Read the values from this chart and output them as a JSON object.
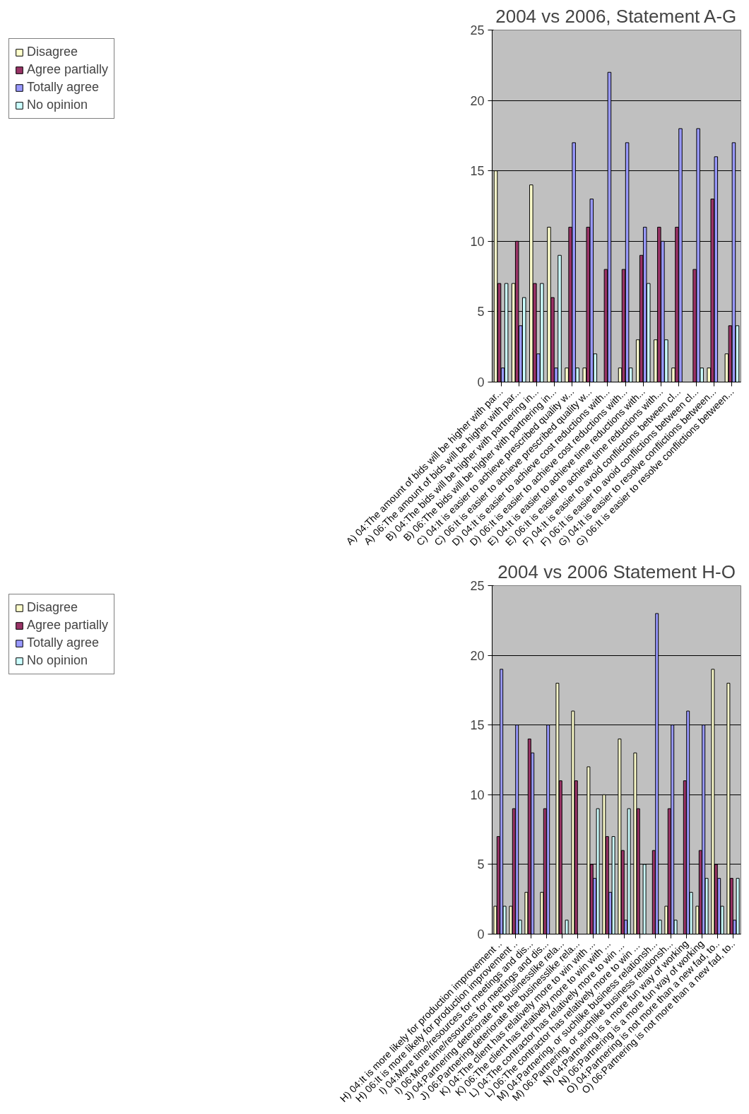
{
  "chart_data": [
    {
      "type": "bar",
      "title": "2004 vs 2006, Statement A-G",
      "categories": [
        "A) 04:The amount of bids will be higher with par...",
        "A) 06:The amount of bids will be higher with par...",
        "B) 04:The bids will be higher with partnering in...",
        "B) 06:The bids will be higher with partnering in...",
        "C) 04:It is easier to achieve prescribed quality w...",
        "C) 06:It is easier to achieve prescribed quality w...",
        "D) 04:It is easier to achieve cost reductions with...",
        "D) 06:It is easier to achieve cost reductions with...",
        "E) 04:It is easier to achieve time reductions with...",
        "E) 06:It is easier to achieve time reductions with...",
        "F) 04:It is easier to avoid conflictions between cl...",
        "F) 06:It is easier to avoid conflictions between cl...",
        "G) 04:It is easier to resolve conflictions between...",
        "G) 06:It is easier to resolve conflictions between..."
      ],
      "series": [
        {
          "name": "Disagree",
          "color": "#ffffcc",
          "values": [
            15,
            7,
            14,
            11,
            1,
            1,
            0,
            1,
            3,
            3,
            1,
            0,
            1,
            2
          ]
        },
        {
          "name": "Agree partially",
          "color": "#993366",
          "values": [
            7,
            10,
            7,
            6,
            11,
            11,
            8,
            8,
            9,
            11,
            11,
            8,
            13,
            4
          ]
        },
        {
          "name": "Totally agree",
          "color": "#9999ff",
          "values": [
            1,
            4,
            2,
            1,
            17,
            13,
            22,
            17,
            11,
            10,
            18,
            18,
            16,
            17
          ]
        },
        {
          "name": "No opinion",
          "color": "#ccffff",
          "values": [
            7,
            6,
            7,
            9,
            1,
            2,
            0,
            1,
            7,
            3,
            0,
            1,
            0,
            4
          ]
        }
      ],
      "ylim": [
        0,
        25
      ],
      "yticks": [
        0,
        5,
        10,
        15,
        20,
        25
      ],
      "grid": "y",
      "legend": "top left"
    },
    {
      "type": "bar",
      "title": "2004 vs 2006 Statement H-O",
      "categories": [
        "H) 04:It is more likely for production improvement ..",
        "H) 06:It is more likely for production improvement ..",
        "I) 04:More time/resources for meetings and dis...",
        "I) 06:More time/resources for meetings and dis...",
        "J) 04:Partnering deteriorate the businesslike rela...",
        "J) 06:Partnering deteriorate the businesslike rela...",
        "K) 04:The client has relatively more to win with ...",
        "K) 06:The client has relatively more to win with ...",
        "L) 04:The contractor has relatively more to win  ...",
        "L) 06:The contractor has relatively more to win  ...",
        "M) 04:Partnering, or suchlike business relationsh...",
        "M) 06:Partnering, or suchlike business relationsh...",
        "N) 04:Partnering is a more fun way of working",
        "N) 06:Partnering is a more fun way of working",
        "O) 04:Partnering is not more than a new fad, to..",
        "O) 06:Partnering is not more than a new fad, to.."
      ],
      "series": [
        {
          "name": "Disagree",
          "color": "#ffffcc",
          "values": [
            2,
            2,
            3,
            3,
            18,
            16,
            12,
            10,
            14,
            13,
            0,
            2,
            0,
            2,
            19,
            18
          ]
        },
        {
          "name": "Agree partially",
          "color": "#993366",
          "values": [
            7,
            9,
            14,
            9,
            11,
            11,
            5,
            7,
            6,
            9,
            6,
            9,
            11,
            6,
            5,
            4
          ]
        },
        {
          "name": "Totally agree",
          "color": "#9999ff",
          "values": [
            19,
            15,
            13,
            15,
            0,
            0,
            4,
            3,
            1,
            0,
            23,
            15,
            16,
            15,
            4,
            1
          ]
        },
        {
          "name": "No opinion",
          "color": "#ccffff",
          "values": [
            2,
            1,
            0,
            0,
            1,
            0,
            9,
            7,
            9,
            5,
            1,
            1,
            3,
            4,
            2,
            4
          ]
        }
      ],
      "ylim": [
        0,
        25
      ],
      "yticks": [
        0,
        5,
        10,
        15,
        20,
        25
      ],
      "grid": "y",
      "legend": "top left"
    }
  ]
}
